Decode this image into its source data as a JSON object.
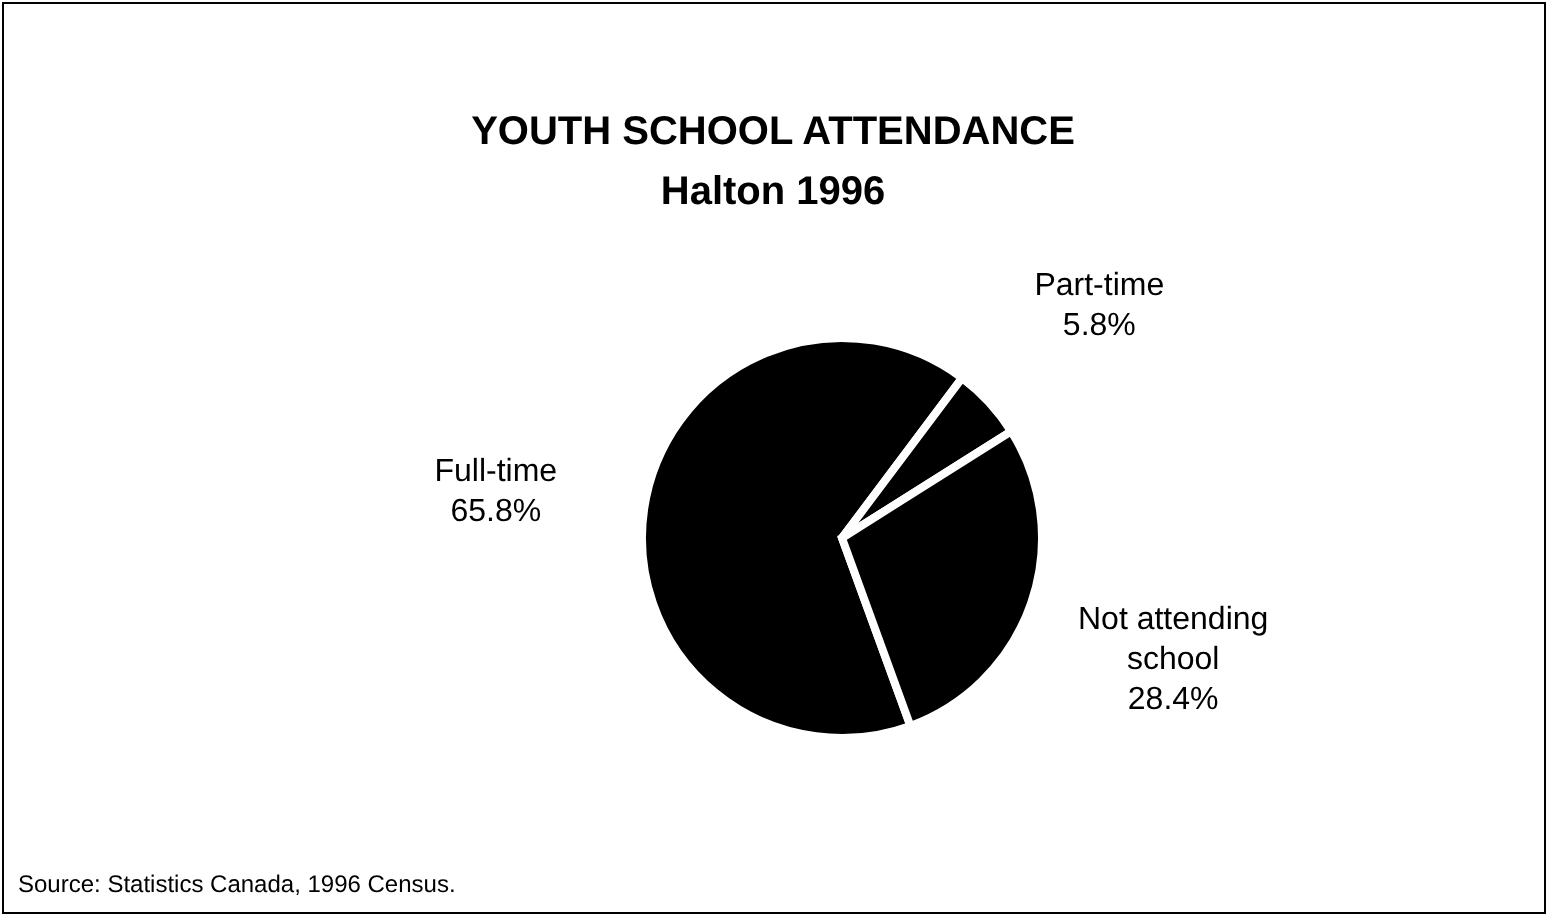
{
  "chart_data": {
    "type": "pie",
    "title": "YOUTH SCHOOL ATTENDANCE",
    "subtitle": "Halton 1996",
    "categories": [
      "Full-time",
      "Part-time",
      "Not attending school"
    ],
    "values": [
      65.8,
      5.8,
      28.4
    ],
    "colors": [
      "#000000",
      "#000000",
      "#000000"
    ],
    "value_labels": [
      "65.8%",
      "5.8%",
      "28.4%"
    ],
    "annotations": [
      "Source: Statistics Canada, 1996 Census."
    ]
  }
}
